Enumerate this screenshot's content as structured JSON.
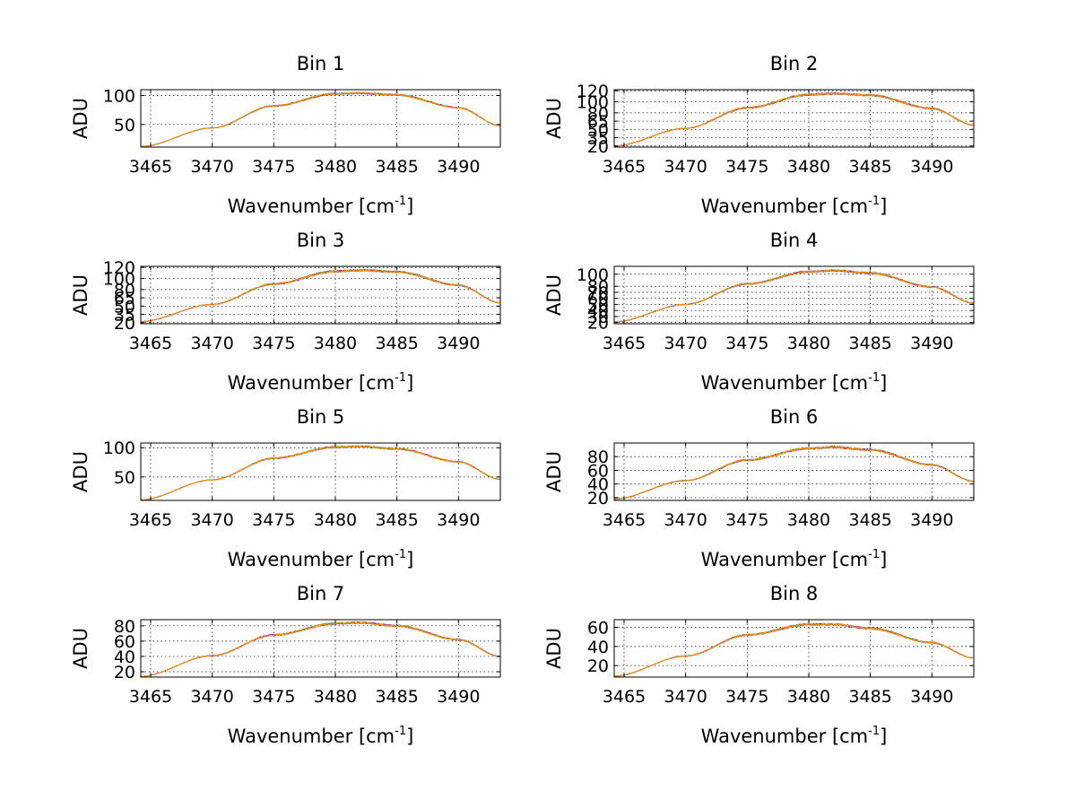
{
  "figure": {
    "background": "#ffffff",
    "series_colors": [
      "#0000ff",
      "#008000",
      "#ff0000",
      "#00bfbf",
      "#bf00bf",
      "#bfbf00",
      "#ff8c00"
    ]
  },
  "chart_data": [
    {
      "type": "line",
      "title": "Bin 1",
      "xlabel": "Wavenumber [cm-1]",
      "xlabel_main": "Wavenumber [cm",
      "xlabel_sup": "-1",
      "xlabel_close": "]",
      "ylabel": "ADU",
      "xlim": [
        3464.2,
        3493.4
      ],
      "ylim": [
        11,
        110
      ],
      "xticks": [
        3465,
        3470,
        3475,
        3480,
        3485,
        3490
      ],
      "xtick_labels": [
        "3465",
        "3470",
        "3475",
        "3480",
        "3485",
        "3490"
      ],
      "yticks": [
        50,
        100
      ],
      "ytick_labels": [
        "50",
        "100"
      ],
      "grid": true,
      "series_count": 7,
      "profile": {
        "x": [
          3464.2,
          3470,
          3475,
          3480,
          3482,
          3485,
          3490,
          3493.4
        ],
        "y": [
          12,
          44,
          82,
          103,
          104,
          101,
          79,
          48
        ]
      },
      "noise": 1.6
    },
    {
      "type": "line",
      "title": "Bin 2",
      "xlabel": "Wavenumber [cm-1]",
      "xlabel_main": "Wavenumber [cm",
      "xlabel_sup": "-1",
      "xlabel_close": "]",
      "ylabel": "ADU",
      "xlim": [
        3464.2,
        3493.4
      ],
      "ylim": [
        18,
        122
      ],
      "xticks": [
        3465,
        3470,
        3475,
        3480,
        3485,
        3490
      ],
      "xtick_labels": [
        "3465",
        "3470",
        "3475",
        "3480",
        "3485",
        "3490"
      ],
      "yticks": [
        20,
        35,
        50,
        65,
        80,
        100,
        120
      ],
      "ytick_labels": [
        "20",
        "35",
        "50",
        "65",
        "80",
        "100",
        "120"
      ],
      "grid": true,
      "series_count": 7,
      "profile": {
        "x": [
          3464.2,
          3470,
          3475,
          3480,
          3482,
          3485,
          3490,
          3493.4
        ],
        "y": [
          20,
          52,
          89,
          113,
          115,
          112,
          88,
          58
        ]
      },
      "noise": 2.0
    },
    {
      "type": "line",
      "title": "Bin 3",
      "xlabel": "Wavenumber [cm-1]",
      "xlabel_main": "Wavenumber [cm",
      "xlabel_sup": "-1",
      "xlabel_close": "]",
      "ylabel": "ADU",
      "xlim": [
        3464.2,
        3493.4
      ],
      "ylim": [
        18,
        122
      ],
      "xticks": [
        3465,
        3470,
        3475,
        3480,
        3485,
        3490
      ],
      "xtick_labels": [
        "3465",
        "3470",
        "3475",
        "3480",
        "3485",
        "3490"
      ],
      "yticks": [
        20,
        35,
        50,
        65,
        80,
        100,
        120
      ],
      "ytick_labels": [
        "20",
        "35",
        "50",
        "65",
        "80",
        "100",
        "120"
      ],
      "grid": true,
      "series_count": 7,
      "profile": {
        "x": [
          3464.2,
          3470,
          3475,
          3480,
          3482,
          3485,
          3490,
          3493.4
        ],
        "y": [
          22,
          53,
          90,
          113,
          115,
          112,
          88,
          56
        ]
      },
      "noise": 2.0
    },
    {
      "type": "line",
      "title": "Bin 4",
      "xlabel": "Wavenumber [cm-1]",
      "xlabel_main": "Wavenumber [cm",
      "xlabel_sup": "-1",
      "xlabel_close": "]",
      "ylabel": "ADU",
      "xlim": [
        3464.2,
        3493.4
      ],
      "ylim": [
        18,
        113
      ],
      "xticks": [
        3465,
        3470,
        3475,
        3480,
        3485,
        3490
      ],
      "xtick_labels": [
        "3465",
        "3470",
        "3475",
        "3480",
        "3485",
        "3490"
      ],
      "yticks": [
        20,
        30,
        40,
        50,
        60,
        70,
        80,
        100
      ],
      "ytick_labels": [
        "20",
        "30",
        "40",
        "50",
        "60",
        "70",
        "80",
        "100"
      ],
      "grid": true,
      "series_count": 7,
      "profile": {
        "x": [
          3464.2,
          3470,
          3475,
          3480,
          3482,
          3485,
          3490,
          3493.4
        ],
        "y": [
          21,
          50,
          84,
          104,
          106,
          102,
          79,
          52
        ]
      },
      "noise": 1.8
    },
    {
      "type": "line",
      "title": "Bin 5",
      "xlabel": "Wavenumber [cm-1]",
      "xlabel_main": "Wavenumber [cm",
      "xlabel_sup": "-1",
      "xlabel_close": "]",
      "ylabel": "ADU",
      "xlim": [
        3464.2,
        3493.4
      ],
      "ylim": [
        10,
        108
      ],
      "xticks": [
        3465,
        3470,
        3475,
        3480,
        3485,
        3490
      ],
      "xtick_labels": [
        "3465",
        "3470",
        "3475",
        "3480",
        "3485",
        "3490"
      ],
      "yticks": [
        50,
        100
      ],
      "ytick_labels": [
        "50",
        "100"
      ],
      "grid": true,
      "series_count": 7,
      "profile": {
        "x": [
          3464.2,
          3470,
          3475,
          3480,
          3482,
          3485,
          3490,
          3493.4
        ],
        "y": [
          11,
          45,
          82,
          101,
          102,
          98,
          76,
          46
        ]
      },
      "noise": 1.6
    },
    {
      "type": "line",
      "title": "Bin 6",
      "xlabel": "Wavenumber [cm-1]",
      "xlabel_main": "Wavenumber [cm",
      "xlabel_sup": "-1",
      "xlabel_close": "]",
      "ylabel": "ADU",
      "xlim": [
        3464.2,
        3493.4
      ],
      "ylim": [
        16,
        100
      ],
      "xticks": [
        3465,
        3470,
        3475,
        3480,
        3485,
        3490
      ],
      "xtick_labels": [
        "3465",
        "3470",
        "3475",
        "3480",
        "3485",
        "3490"
      ],
      "yticks": [
        20,
        40,
        60,
        80
      ],
      "ytick_labels": [
        "20",
        "40",
        "60",
        "80"
      ],
      "grid": true,
      "series_count": 7,
      "profile": {
        "x": [
          3464.2,
          3470,
          3475,
          3480,
          3482,
          3485,
          3490,
          3493.4
        ],
        "y": [
          18,
          45,
          75,
          92,
          94,
          90,
          68,
          44
        ]
      },
      "noise": 1.7
    },
    {
      "type": "line",
      "title": "Bin 7",
      "xlabel": "Wavenumber [cm-1]",
      "xlabel_main": "Wavenumber [cm",
      "xlabel_sup": "-1",
      "xlabel_close": "]",
      "ylabel": "ADU",
      "xlim": [
        3464.2,
        3493.4
      ],
      "ylim": [
        13,
        88
      ],
      "xticks": [
        3465,
        3470,
        3475,
        3480,
        3485,
        3490
      ],
      "xtick_labels": [
        "3465",
        "3470",
        "3475",
        "3480",
        "3485",
        "3490"
      ],
      "yticks": [
        20,
        40,
        60,
        80
      ],
      "ytick_labels": [
        "20",
        "40",
        "60",
        "80"
      ],
      "grid": true,
      "series_count": 7,
      "profile": {
        "x": [
          3464.2,
          3470,
          3475,
          3480,
          3482,
          3485,
          3490,
          3493.4
        ],
        "y": [
          14,
          41,
          68,
          83,
          84,
          80,
          62,
          40
        ]
      },
      "noise": 1.4
    },
    {
      "type": "line",
      "title": "Bin 8",
      "xlabel": "Wavenumber [cm-1]",
      "xlabel_main": "Wavenumber [cm",
      "xlabel_sup": "-1",
      "xlabel_close": "]",
      "ylabel": "ADU",
      "xlim": [
        3464.2,
        3493.4
      ],
      "ylim": [
        8,
        68
      ],
      "xticks": [
        3465,
        3470,
        3475,
        3480,
        3485,
        3490
      ],
      "xtick_labels": [
        "3465",
        "3470",
        "3475",
        "3480",
        "3485",
        "3490"
      ],
      "yticks": [
        20,
        40,
        60
      ],
      "ytick_labels": [
        "20",
        "40",
        "60"
      ],
      "grid": true,
      "series_count": 7,
      "profile": {
        "x": [
          3464.2,
          3470,
          3475,
          3480,
          3482,
          3485,
          3490,
          3493.4
        ],
        "y": [
          9,
          30,
          52,
          63,
          63,
          59,
          44,
          28
        ]
      },
      "noise": 1.2
    }
  ]
}
